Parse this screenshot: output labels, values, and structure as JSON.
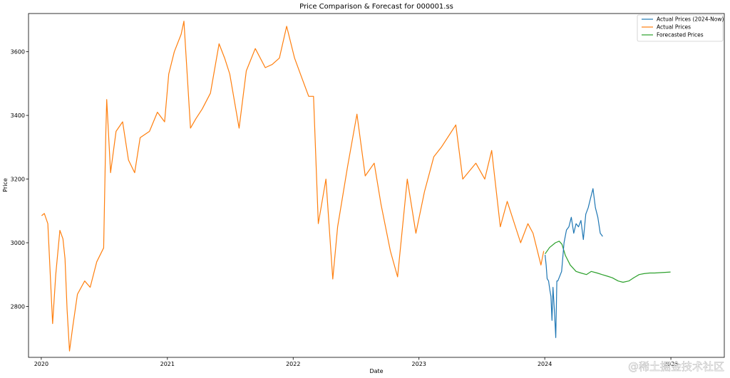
{
  "chart_data": {
    "type": "line",
    "title": "Price Comparison & Forecast for 000001.ss",
    "xlabel": "Date",
    "ylabel": "Price",
    "x_ticks": [
      "2020",
      "2021",
      "2022",
      "2023",
      "2024",
      "2025"
    ],
    "y_ticks": [
      2800,
      3000,
      3200,
      3400,
      3600
    ],
    "xlim": [
      "2019-11-25",
      "2025-06-05"
    ],
    "ylim": [
      2640,
      3720
    ],
    "grid": false,
    "legend_position": "top-right",
    "series": [
      {
        "name": "Actual Prices (2024-Now)",
        "color": "#1f77b4",
        "x": [
          "2024-01-02",
          "2024-01-05",
          "2024-01-08",
          "2024-01-12",
          "2024-01-16",
          "2024-01-19",
          "2024-01-22",
          "2024-01-25",
          "2024-01-29",
          "2024-02-02",
          "2024-02-05",
          "2024-02-08",
          "2024-02-19",
          "2024-02-26",
          "2024-03-04",
          "2024-03-11",
          "2024-03-18",
          "2024-03-25",
          "2024-04-01",
          "2024-04-08",
          "2024-04-15",
          "2024-04-22",
          "2024-04-29",
          "2024-05-06",
          "2024-05-13",
          "2024-05-20",
          "2024-05-27",
          "2024-06-03",
          "2024-06-10",
          "2024-06-17"
        ],
        "y": [
          2962,
          2930,
          2887,
          2880,
          2850,
          2832,
          2756,
          2860,
          2786,
          2702,
          2880,
          2880,
          2910,
          3000,
          3040,
          3050,
          3080,
          3030,
          3060,
          3050,
          3070,
          3010,
          3090,
          3110,
          3140,
          3170,
          3110,
          3080,
          3030,
          3020
        ]
      },
      {
        "name": "Actual Prices",
        "color": "#ff7f0e",
        "x": [
          "2020-01-02",
          "2020-01-10",
          "2020-01-20",
          "2020-02-03",
          "2020-02-12",
          "2020-02-24",
          "2020-03-04",
          "2020-03-10",
          "2020-03-16",
          "2020-03-23",
          "2020-04-01",
          "2020-04-15",
          "2020-05-06",
          "2020-05-22",
          "2020-06-10",
          "2020-06-30",
          "2020-07-06",
          "2020-07-09",
          "2020-07-20",
          "2020-08-05",
          "2020-08-24",
          "2020-09-10",
          "2020-09-28",
          "2020-10-14",
          "2020-11-10",
          "2020-12-03",
          "2020-12-24",
          "2021-01-05",
          "2021-01-21",
          "2021-02-10",
          "2021-02-18",
          "2021-03-09",
          "2021-03-25",
          "2021-04-12",
          "2021-05-06",
          "2021-05-31",
          "2021-06-16",
          "2021-07-01",
          "2021-07-28",
          "2021-08-18",
          "2021-09-13",
          "2021-10-12",
          "2021-11-01",
          "2021-11-22",
          "2021-12-13",
          "2022-01-05",
          "2022-01-24",
          "2022-02-15",
          "2022-03-01",
          "2022-03-15",
          "2022-04-06",
          "2022-04-26",
          "2022-05-10",
          "2022-06-08",
          "2022-07-05",
          "2022-07-29",
          "2022-08-24",
          "2022-09-13",
          "2022-10-10",
          "2022-10-31",
          "2022-11-28",
          "2022-12-23",
          "2023-01-17",
          "2023-02-13",
          "2023-03-07",
          "2023-04-18",
          "2023-05-08",
          "2023-06-15",
          "2023-07-11",
          "2023-07-31",
          "2023-08-25",
          "2023-09-14",
          "2023-10-23",
          "2023-11-13",
          "2023-11-28",
          "2023-12-21",
          "2023-12-29"
        ],
        "y": [
          3085,
          3092,
          3060,
          2746,
          2900,
          3039,
          3012,
          2950,
          2790,
          2660,
          2734,
          2838,
          2880,
          2860,
          2940,
          2984,
          3332,
          3450,
          3220,
          3350,
          3380,
          3260,
          3220,
          3330,
          3350,
          3410,
          3380,
          3530,
          3600,
          3655,
          3696,
          3360,
          3390,
          3420,
          3470,
          3625,
          3580,
          3530,
          3360,
          3540,
          3610,
          3550,
          3560,
          3580,
          3680,
          3580,
          3524,
          3460,
          3460,
          3060,
          3200,
          2886,
          3050,
          3240,
          3404,
          3210,
          3250,
          3120,
          2974,
          2893,
          3200,
          3030,
          3160,
          3270,
          3300,
          3370,
          3200,
          3250,
          3200,
          3290,
          3050,
          3130,
          3000,
          3060,
          3030,
          2930,
          2974
        ]
      },
      {
        "name": "Forecasted Prices",
        "color": "#2ca02c",
        "x": [
          "2024-01-02",
          "2024-01-15",
          "2024-02-01",
          "2024-02-12",
          "2024-02-20",
          "2024-03-01",
          "2024-03-15",
          "2024-04-01",
          "2024-04-15",
          "2024-05-01",
          "2024-05-15",
          "2024-06-01",
          "2024-06-15",
          "2024-07-01",
          "2024-07-15",
          "2024-08-01",
          "2024-08-15",
          "2024-09-01",
          "2024-09-15",
          "2024-10-01",
          "2024-10-15",
          "2024-11-01",
          "2024-11-15",
          "2024-12-01",
          "2024-12-15",
          "2024-12-31"
        ],
        "y": [
          2965,
          2985,
          3000,
          3005,
          2995,
          2960,
          2930,
          2910,
          2905,
          2900,
          2910,
          2905,
          2900,
          2895,
          2890,
          2880,
          2876,
          2880,
          2890,
          2900,
          2903,
          2905,
          2905,
          2906,
          2907,
          2908
        ]
      }
    ],
    "watermark": "@稀土掘金技术社区"
  }
}
